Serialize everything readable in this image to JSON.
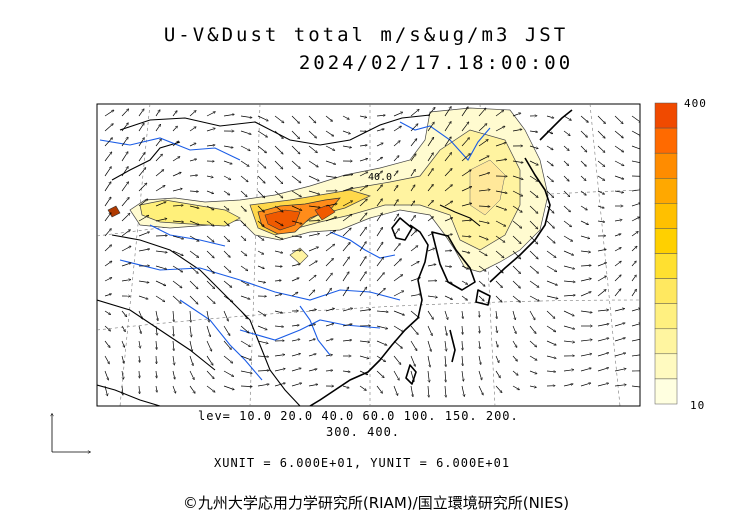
{
  "header": {
    "title": "U-V&Dust total m/s&ug/m3 JST",
    "datetime": "2024/02/17.18:00:00"
  },
  "legend": {
    "levels_line1": "lev= 10.0 20.0 40.0 60.0 100. 150. 200.",
    "levels_line2": "300. 400.",
    "scale_max": "400",
    "scale_min": "10",
    "colors": [
      "#ffffe0",
      "#fffac0",
      "#fff5a0",
      "#fff080",
      "#ffe860",
      "#ffe030",
      "#ffd000",
      "#ffc000",
      "#ffa800",
      "#ff8c00",
      "#ff6a00",
      "#f04a00"
    ]
  },
  "units_line": "XUNIT = 6.000E+01, YUNIT = 6.000E+01",
  "plume_contour_label": "40.0",
  "credit": "©九州大学応用力学研究所(RIAM)/国立環境研究所(NIES)"
}
